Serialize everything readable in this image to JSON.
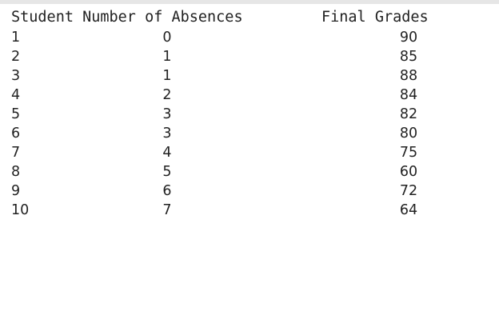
{
  "header": {
    "left": "Student Number of Absences",
    "right": "Final Grades"
  },
  "rows": [
    {
      "student": "1",
      "absences": "0",
      "grade": "90"
    },
    {
      "student": "2",
      "absences": "1",
      "grade": "85"
    },
    {
      "student": "3",
      "absences": "1",
      "grade": "88"
    },
    {
      "student": "4",
      "absences": "2",
      "grade": "84"
    },
    {
      "student": "5",
      "absences": "3",
      "grade": "82"
    },
    {
      "student": "6",
      "absences": "3",
      "grade": "80"
    },
    {
      "student": "7",
      "absences": "4",
      "grade": "75"
    },
    {
      "student": "8",
      "absences": "5",
      "grade": "60"
    },
    {
      "student": "9",
      "absences": "6",
      "grade": "72"
    },
    {
      "student": "10",
      "absences": "7",
      "grade": "64"
    }
  ]
}
